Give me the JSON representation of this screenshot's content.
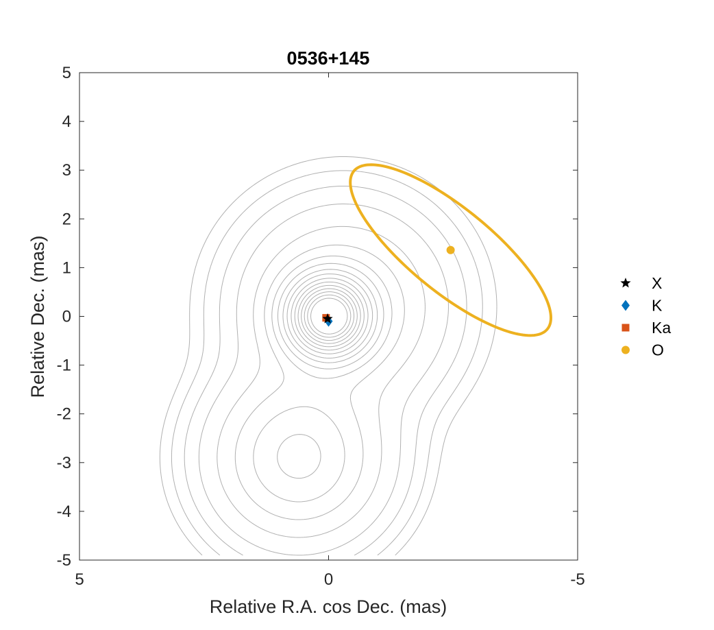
{
  "chart_data": {
    "type": "scatter",
    "title": "0536+145",
    "xlabel": "Relative R.A. cos Dec. (mas)",
    "ylabel": "Relative Dec. (mas)",
    "xlim": [
      5,
      -5
    ],
    "ylim": [
      -5,
      5
    ],
    "x_reversed": true,
    "x_ticks": [
      5,
      0,
      -5
    ],
    "x_tick_labels": [
      "5",
      "0",
      "-5"
    ],
    "y_ticks": [
      5,
      4,
      3,
      2,
      1,
      0,
      -1,
      -2,
      -3,
      -4,
      -5
    ],
    "y_tick_labels": [
      "5",
      "4",
      "3",
      "2",
      "1",
      "0",
      "-1",
      "-2",
      "-3",
      "-4",
      "-5"
    ],
    "grid": false,
    "legend_position": "right",
    "series": [
      {
        "name": "X",
        "marker": "star",
        "color": "#000000",
        "x": [
          0.02
        ],
        "y": [
          -0.05
        ]
      },
      {
        "name": "K",
        "marker": "diamond",
        "color": "#0072BD",
        "x": [
          0.0
        ],
        "y": [
          -0.1
        ]
      },
      {
        "name": "Ka",
        "marker": "square",
        "color": "#D95319",
        "x": [
          0.05
        ],
        "y": [
          -0.03
        ]
      },
      {
        "name": "O",
        "marker": "circle",
        "color": "#EDB120",
        "x": [
          -2.45
        ],
        "y": [
          1.36
        ]
      }
    ],
    "error_ellipse": {
      "series": "O",
      "color": "#EDB120",
      "center": [
        -2.45,
        1.36
      ],
      "semi_major": 2.53,
      "semi_minor": 0.85,
      "angle_deg": 40
    },
    "contour_color": "#b0b0b0",
    "contours": {
      "components": [
        {
          "x": 0.0,
          "y": 0.0,
          "peak": 1.0,
          "sigma": 0.5
        },
        {
          "x": 0.6,
          "y": -2.9,
          "peak": 0.22,
          "sigma": 0.95
        },
        {
          "x": -0.3,
          "y": 0.2,
          "peak": 0.15,
          "sigma": 1.1
        }
      ],
      "levels": [
        0.003,
        0.006,
        0.012,
        0.024,
        0.05,
        0.09,
        0.14,
        0.2,
        0.27,
        0.34,
        0.42,
        0.5,
        0.58,
        0.66,
        0.74,
        0.82,
        0.9
      ]
    }
  }
}
